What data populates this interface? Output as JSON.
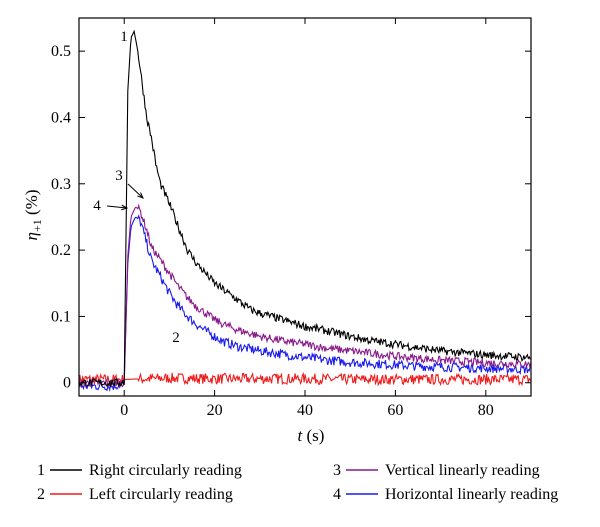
{
  "chart_data": {
    "type": "line",
    "xlabel": "t (s)",
    "ylabel": "η+1 (%)",
    "xlim": [
      -10,
      90
    ],
    "ylim": [
      -0.02,
      0.55
    ],
    "xticks": [
      0,
      20,
      40,
      60,
      80
    ],
    "xtick_labels": [
      "0",
      "20",
      "40",
      "60",
      "80"
    ],
    "yticks": [
      0,
      0.1,
      0.2,
      0.3,
      0.4,
      0.5
    ],
    "ytick_labels": [
      "0",
      "0.1",
      "0.2",
      "0.3",
      "0.4",
      "0.5"
    ],
    "grid": false,
    "legend_position": "bottom",
    "series": [
      {
        "id": "1",
        "name": "Right circularly reading",
        "color": "#000000",
        "x": [
          -10,
          -2,
          0,
          0.8,
          1.5,
          2.2,
          3,
          4,
          5,
          6,
          7,
          8,
          10,
          12,
          14,
          16,
          18,
          20,
          22,
          25,
          28,
          30,
          35,
          40,
          45,
          50,
          55,
          60,
          65,
          70,
          75,
          80,
          85,
          90
        ],
        "y": [
          0,
          0,
          0,
          0.44,
          0.52,
          0.53,
          0.5,
          0.45,
          0.4,
          0.37,
          0.33,
          0.3,
          0.27,
          0.235,
          0.2,
          0.18,
          0.165,
          0.15,
          0.14,
          0.125,
          0.11,
          0.105,
          0.095,
          0.085,
          0.078,
          0.07,
          0.063,
          0.058,
          0.053,
          0.048,
          0.045,
          0.042,
          0.04,
          0.038
        ]
      },
      {
        "id": "2",
        "name": "Left circularly reading",
        "color": "#ee1c1c",
        "x": [
          -10,
          0,
          10,
          20,
          30,
          40,
          50,
          60,
          70,
          80,
          90
        ],
        "y": [
          0.005,
          0.005,
          0.007,
          0.006,
          0.006,
          0.006,
          0.005,
          0.005,
          0.005,
          0.005,
          0.005
        ]
      },
      {
        "id": "3",
        "name": "Vertical linearly reading",
        "color": "#8a1a8a",
        "x": [
          -10,
          -2,
          0,
          0.8,
          1.5,
          2.5,
          3.5,
          5,
          6,
          8,
          10,
          12,
          14,
          16,
          18,
          20,
          22,
          25,
          30,
          35,
          40,
          45,
          50,
          55,
          60,
          65,
          70,
          75,
          80,
          85,
          90
        ],
        "y": [
          0,
          0,
          0,
          0.19,
          0.25,
          0.265,
          0.26,
          0.23,
          0.205,
          0.185,
          0.165,
          0.145,
          0.128,
          0.115,
          0.105,
          0.095,
          0.088,
          0.08,
          0.07,
          0.063,
          0.058,
          0.052,
          0.048,
          0.044,
          0.04,
          0.037,
          0.034,
          0.032,
          0.03,
          0.029,
          0.028
        ]
      },
      {
        "id": "4",
        "name": "Horizontal linearly reading",
        "color": "#1a1aee",
        "x": [
          -10,
          -2,
          0,
          0.8,
          1.5,
          2.5,
          3.5,
          5,
          6,
          8,
          10,
          12,
          14,
          16,
          18,
          20,
          22,
          25,
          30,
          35,
          40,
          45,
          50,
          55,
          60,
          65,
          70,
          75,
          80,
          85,
          90
        ],
        "y": [
          -0.005,
          -0.005,
          0,
          0.18,
          0.235,
          0.25,
          0.245,
          0.21,
          0.185,
          0.16,
          0.135,
          0.115,
          0.1,
          0.088,
          0.078,
          0.07,
          0.062,
          0.055,
          0.048,
          0.043,
          0.038,
          0.034,
          0.031,
          0.029,
          0.027,
          0.025,
          0.024,
          0.023,
          0.022,
          0.021,
          0.02
        ]
      }
    ],
    "annotations": [
      {
        "label": "1",
        "series": "1",
        "arrow": false
      },
      {
        "label": "2",
        "series": "2",
        "arrow": false
      },
      {
        "label": "3",
        "series": "3",
        "arrow": true
      },
      {
        "label": "4",
        "series": "4",
        "arrow": true
      }
    ],
    "legend": [
      {
        "num": "1",
        "label": "Right circularly reading",
        "color": "#000000"
      },
      {
        "num": "2",
        "label": "Left circularly reading",
        "color": "#ee1c1c"
      },
      {
        "num": "3",
        "label": "Vertical linearly reading",
        "color": "#8a1a8a"
      },
      {
        "num": "4",
        "label": "Horizontal linearly reading",
        "color": "#1a1aee"
      }
    ]
  }
}
